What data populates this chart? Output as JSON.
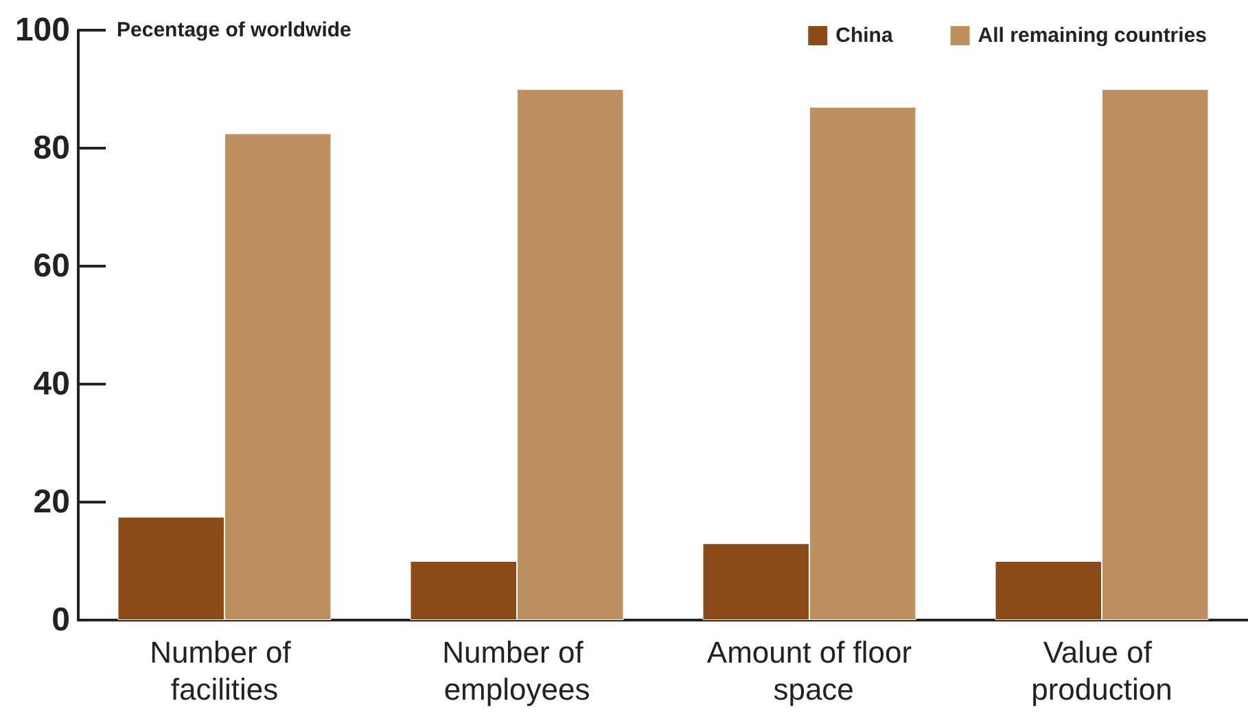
{
  "chart_data": {
    "type": "bar",
    "ylabel": "Pecentage of worldwide",
    "categories": [
      "Number of facilities",
      "Number of employees",
      "Amount of floor space",
      "Value of production"
    ],
    "series": [
      {
        "name": "China",
        "color": "#8b4a16",
        "values": [
          17.5,
          10,
          13,
          10
        ]
      },
      {
        "name": "All remaining countries",
        "color": "#bd9062",
        "values": [
          82.5,
          90,
          87,
          90
        ]
      }
    ],
    "ylim": [
      0,
      100
    ],
    "yticks": [
      0,
      20,
      40,
      60,
      80,
      100
    ],
    "grid": false,
    "legend": "top right"
  }
}
